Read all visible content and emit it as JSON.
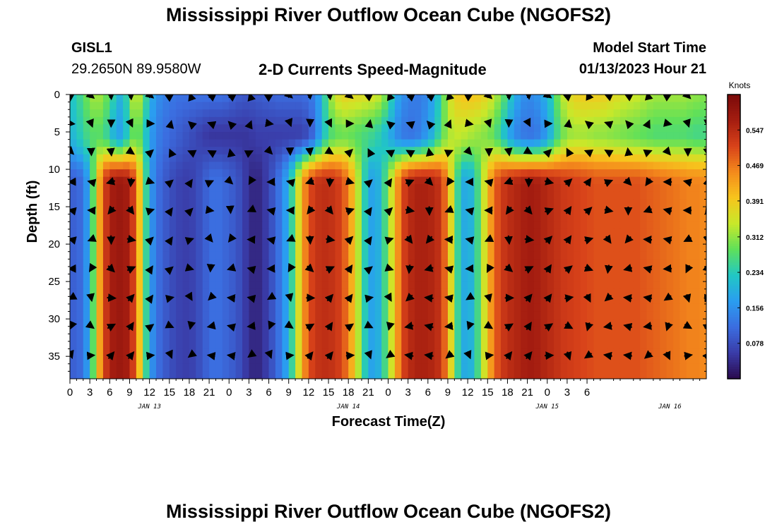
{
  "page": {
    "title": "Mississippi River Outflow Ocean Cube (NGOFS2)",
    "footer_title": "Mississippi River Outflow Ocean Cube (NGOFS2)",
    "station": "GISL1",
    "coords": "29.2650N  89.9580W",
    "subtitle": "2-D Currents Speed-Magnitude",
    "model_label": "Model Start Time",
    "model_time": "01/13/2023 Hour 21"
  },
  "chart_data": {
    "type": "heatmap",
    "title": "2-D Currents Speed-Magnitude",
    "xlabel": "Forecast Time(Z)",
    "ylabel": "Depth (ft)",
    "x_hours": [
      0,
      96
    ],
    "x_tick_step_hours": 3,
    "x_tick_labels": [
      "0",
      "3",
      "6",
      "9",
      "12",
      "15",
      "18",
      "21",
      "0",
      "3",
      "6",
      "9",
      "12",
      "15",
      "18",
      "21",
      "0",
      "3",
      "6",
      "9",
      "12",
      "15",
      "18",
      "21",
      "0",
      "3",
      "6"
    ],
    "date_labels": [
      {
        "label": "JAN 13",
        "hour": 12
      },
      {
        "label": "JAN 14",
        "hour": 42
      },
      {
        "label": "JAN 15",
        "hour": 72
      },
      {
        "label": "JAN 16",
        "hour": 90.5
      }
    ],
    "ylim": [
      0,
      38
    ],
    "y_ticks": [
      0,
      5,
      10,
      15,
      20,
      25,
      30,
      35
    ],
    "colorbar": {
      "unit": "Knots",
      "range": [
        0.0,
        0.625
      ],
      "ticks": [
        "0.078",
        "0.156",
        "0.234",
        "0.312",
        "0.391",
        "0.469",
        "0.547"
      ],
      "tick_values": [
        0.078,
        0.156,
        0.234,
        0.312,
        0.391,
        0.469,
        0.547
      ],
      "colors": [
        "#2a0a4d",
        "#3a3ca8",
        "#3b6de0",
        "#2a9df0",
        "#21c7c4",
        "#5fe05a",
        "#c8e82a",
        "#f7c51d",
        "#f48a1c",
        "#d8421a",
        "#a41d10",
        "#7a0a0a"
      ]
    },
    "speed_hourly_surface_ft0": [
      0.22,
      0.24,
      0.27,
      0.31,
      0.33,
      0.31,
      0.27,
      0.22,
      0.18,
      0.3,
      0.36,
      0.3,
      0.2,
      0.16,
      0.14,
      0.13,
      0.12,
      0.12,
      0.12,
      0.12,
      0.12,
      0.12,
      0.12,
      0.12,
      0.11,
      0.1,
      0.09,
      0.09,
      0.09,
      0.1,
      0.1,
      0.11,
      0.11,
      0.11,
      0.11,
      0.11,
      0.12,
      0.14,
      0.2,
      0.3,
      0.35,
      0.38,
      0.38,
      0.37,
      0.37,
      0.36,
      0.36,
      0.33,
      0.28,
      0.2,
      0.16,
      0.14,
      0.13,
      0.13,
      0.15,
      0.19,
      0.25,
      0.34,
      0.38,
      0.4,
      0.4,
      0.4,
      0.39,
      0.37,
      0.34,
      0.3,
      0.25,
      0.2,
      0.16,
      0.15,
      0.15,
      0.17,
      0.2,
      0.26,
      0.32,
      0.36,
      0.38,
      0.39,
      0.39,
      0.39,
      0.39,
      0.38,
      0.37,
      0.36,
      0.35,
      0.35,
      0.34,
      0.33,
      0.32,
      0.32,
      0.32,
      0.32,
      0.32,
      0.32,
      0.31,
      0.31,
      0.3
    ],
    "speed_hourly_mid_ft5": [
      0.2,
      0.22,
      0.25,
      0.27,
      0.28,
      0.27,
      0.23,
      0.17,
      0.18,
      0.26,
      0.3,
      0.26,
      0.18,
      0.14,
      0.12,
      0.11,
      0.1,
      0.09,
      0.08,
      0.07,
      0.06,
      0.05,
      0.05,
      0.05,
      0.05,
      0.05,
      0.05,
      0.05,
      0.06,
      0.06,
      0.06,
      0.06,
      0.06,
      0.06,
      0.06,
      0.06,
      0.08,
      0.12,
      0.2,
      0.26,
      0.28,
      0.29,
      0.29,
      0.28,
      0.27,
      0.26,
      0.25,
      0.23,
      0.2,
      0.16,
      0.13,
      0.12,
      0.12,
      0.14,
      0.17,
      0.21,
      0.27,
      0.32,
      0.34,
      0.34,
      0.33,
      0.32,
      0.31,
      0.3,
      0.28,
      0.24,
      0.19,
      0.15,
      0.13,
      0.12,
      0.12,
      0.14,
      0.17,
      0.23,
      0.28,
      0.31,
      0.32,
      0.32,
      0.32,
      0.31,
      0.31,
      0.31,
      0.3,
      0.3,
      0.29,
      0.29,
      0.28,
      0.28,
      0.27,
      0.27,
      0.27,
      0.27,
      0.27,
      0.27,
      0.26,
      0.26,
      0.26
    ],
    "speed_hourly_deep_ft15_38": [
      0.1,
      0.1,
      0.12,
      0.2,
      0.36,
      0.5,
      0.56,
      0.58,
      0.58,
      0.56,
      0.48,
      0.32,
      0.18,
      0.12,
      0.1,
      0.08,
      0.07,
      0.06,
      0.06,
      0.07,
      0.09,
      0.11,
      0.12,
      0.11,
      0.1,
      0.09,
      0.07,
      0.04,
      0.03,
      0.04,
      0.07,
      0.1,
      0.14,
      0.2,
      0.3,
      0.42,
      0.5,
      0.53,
      0.54,
      0.54,
      0.53,
      0.51,
      0.46,
      0.38,
      0.28,
      0.19,
      0.17,
      0.22,
      0.3,
      0.4,
      0.5,
      0.54,
      0.56,
      0.56,
      0.56,
      0.55,
      0.53,
      0.44,
      0.3,
      0.2,
      0.18,
      0.22,
      0.3,
      0.4,
      0.48,
      0.52,
      0.54,
      0.55,
      0.56,
      0.57,
      0.57,
      0.56,
      0.55,
      0.54,
      0.53,
      0.52,
      0.52,
      0.51,
      0.51,
      0.5,
      0.5,
      0.5,
      0.5,
      0.5,
      0.5,
      0.5,
      0.5,
      0.49,
      0.49,
      0.48,
      0.48,
      0.47,
      0.47,
      0.46,
      0.46,
      0.46,
      0.45
    ],
    "arrows_note": "black current-direction arrows every 3 hours at each depth row"
  }
}
